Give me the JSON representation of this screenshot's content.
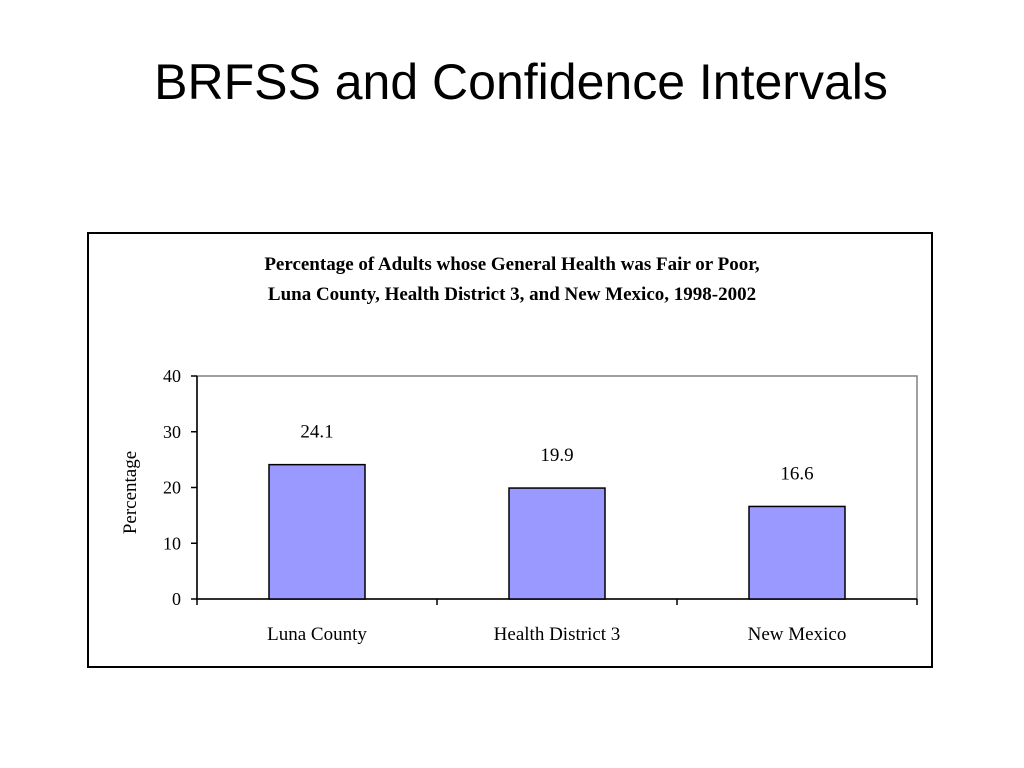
{
  "slide": {
    "title": "BRFSS and Confidence Intervals"
  },
  "chart_data": {
    "type": "bar",
    "title_lines": [
      "Percentage of Adults whose General Health was Fair or Poor,",
      "Luna County, Health District 3, and New Mexico, 1998-2002"
    ],
    "categories": [
      "Luna County",
      "Health District 3",
      "New Mexico"
    ],
    "values": [
      24.1,
      19.9,
      16.6
    ],
    "value_labels": [
      "24.1",
      "19.9",
      "16.6"
    ],
    "ylabel": "Percentage",
    "xlabel": "",
    "ylim": [
      0,
      40
    ],
    "yticks": [
      "0",
      "10",
      "20",
      "30",
      "40"
    ],
    "grid": false,
    "legend": "none",
    "colors": {
      "bar_fill": "#9999ff",
      "bar_stroke": "#000000",
      "plot_border": "#808080"
    }
  }
}
